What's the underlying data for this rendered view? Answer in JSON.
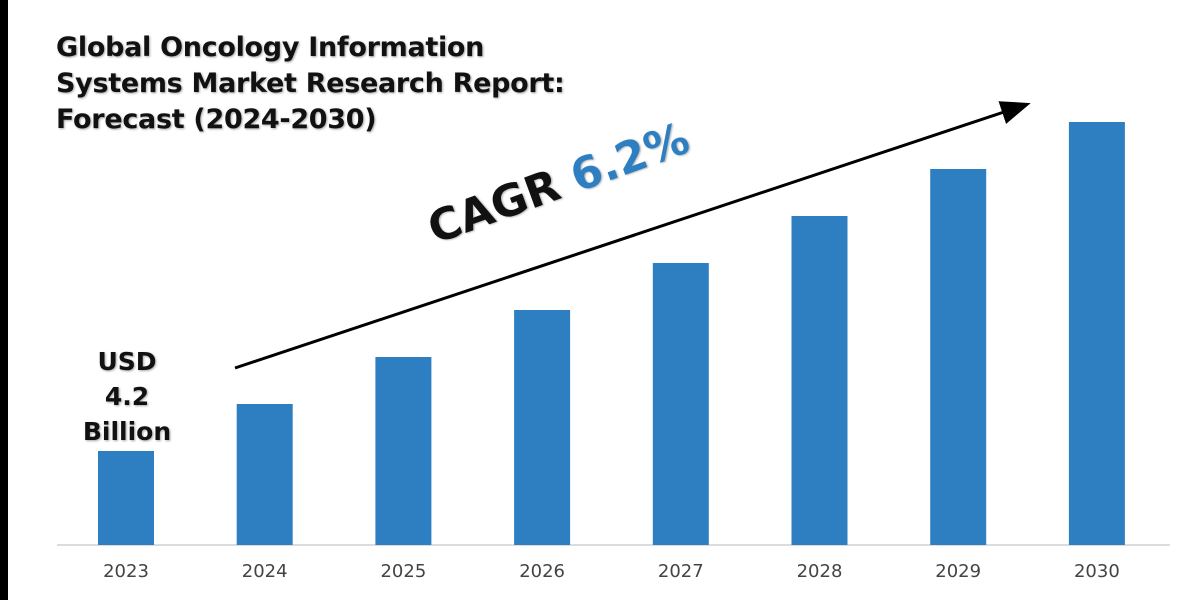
{
  "title_lines": [
    "Global Oncology Information",
    "Systems Market Research Report:",
    "Forecast (2024-2030)"
  ],
  "annotation": {
    "prefix": "CAGR",
    "value": "6.2%"
  },
  "start_label": [
    "USD",
    "4.2",
    "Billion"
  ],
  "colors": {
    "bar": "#2e7fc2",
    "accent": "#2e7fc2",
    "axis": "#d0d0d0"
  },
  "chart_data": {
    "type": "bar",
    "title": "Global Oncology Information Systems Market Research Report: Forecast (2024-2030)",
    "categories": [
      "2023",
      "2024",
      "2025",
      "2026",
      "2027",
      "2028",
      "2029",
      "2030"
    ],
    "values": [
      4.2,
      6.3,
      8.4,
      10.5,
      12.6,
      14.7,
      16.8,
      18.9
    ],
    "unit": "USD Billion",
    "xlabel": "",
    "ylabel": "",
    "ylim": [
      0,
      20
    ],
    "grid": false,
    "annotations": [
      "CAGR 6.2%",
      "USD 4.2 Billion"
    ]
  }
}
